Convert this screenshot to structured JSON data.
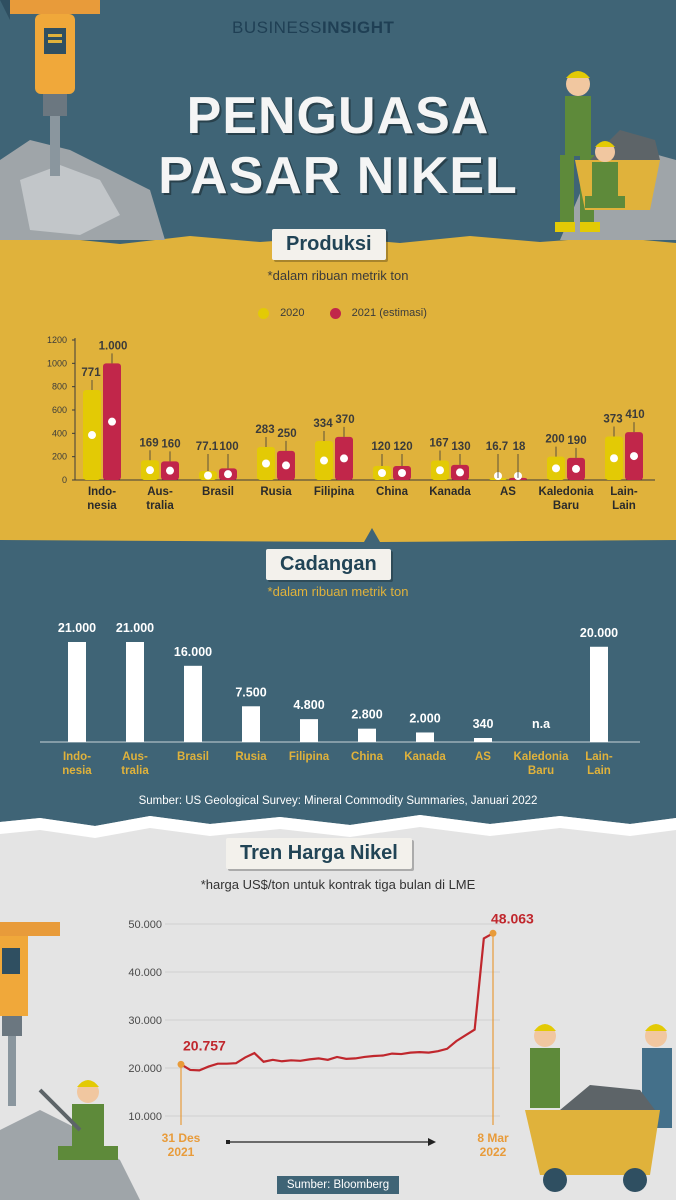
{
  "brand": {
    "part1": "BUSINESS",
    "part2": "INSIGHT"
  },
  "title": {
    "line1": "PENGUASA",
    "line2": "PASAR NIKEL"
  },
  "colors": {
    "bg_dark": "#3f6476",
    "gold": "#e0b23b",
    "yellow": "#e3ca05",
    "crimson": "#c1264a",
    "white": "#ffffff",
    "price_line": "#c0272d",
    "orange": "#e89b3a"
  },
  "produksi": {
    "heading": "Produksi",
    "note": "*dalam ribuan metrik ton",
    "legend": {
      "a": "2020",
      "b": "2021 (estimasi)"
    }
  },
  "cadangan": {
    "heading": "Cadangan",
    "note": "*dalam ribuan metrik ton",
    "source": "Sumber: US Geological Survey: Mineral Commodity Summaries, Januari 2022"
  },
  "harga": {
    "heading": "Tren Harga Nikel",
    "note": "*harga US$/ton untuk kontrak tiga bulan di LME",
    "source": "Sumber: Bloomberg"
  },
  "chart_data": [
    {
      "type": "bar",
      "title": "Produksi",
      "categories": [
        "Indo-\nnesia",
        "Aus-\ntralia",
        "Brasil",
        "Rusia",
        "Filipina",
        "China",
        "Kanada",
        "AS",
        "Kaledonia\nBaru",
        "Lain-\nLain"
      ],
      "series": [
        {
          "name": "2020",
          "values": [
            771,
            169,
            77.1,
            283,
            334,
            120,
            167,
            16.7,
            200,
            373
          ],
          "labels": [
            "771",
            "169",
            "77.1",
            "283",
            "334",
            "120",
            "167",
            "16.7",
            "200",
            "373"
          ]
        },
        {
          "name": "2021 (estimasi)",
          "values": [
            1000,
            160,
            100,
            250,
            370,
            120,
            130,
            18,
            190,
            410
          ],
          "labels": [
            "1.000",
            "160",
            "100",
            "250",
            "370",
            "120",
            "130",
            "18",
            "190",
            "410"
          ]
        }
      ],
      "yticks": [
        "0",
        "200",
        "400",
        "600",
        "800",
        "1000",
        "1200"
      ],
      "ylim": [
        0,
        1200
      ]
    },
    {
      "type": "bar",
      "title": "Cadangan",
      "categories": [
        "Indo-\nnesia",
        "Aus-\ntralia",
        "Brasil",
        "Rusia",
        "Filipina",
        "China",
        "Kanada",
        "AS",
        "Kaledonia\nBaru",
        "Lain-\nLain"
      ],
      "values": [
        21000,
        21000,
        16000,
        7500,
        4800,
        2800,
        2000,
        340,
        null,
        20000
      ],
      "labels": [
        "21.000",
        "21.000",
        "16.000",
        "7.500",
        "4.800",
        "2.800",
        "2.000",
        "340",
        "n.a",
        "20.000"
      ],
      "ylim": [
        0,
        21000
      ]
    },
    {
      "type": "line",
      "title": "Tren Harga Nikel",
      "ylim": [
        10000,
        50000
      ],
      "yticks": [
        "10.000",
        "20.000",
        "30.000",
        "40.000",
        "50.000"
      ],
      "start_label": "20.757",
      "end_label": "48.063",
      "x_start": "31 Des\n2021",
      "x_end": "8 Mar\n2022",
      "values": [
        20757,
        19600,
        19500,
        20300,
        20900,
        20900,
        21000,
        22200,
        23100,
        21300,
        21700,
        21400,
        21600,
        21500,
        21800,
        22000,
        21700,
        22300,
        21900,
        22000,
        22300,
        22500,
        22600,
        23000,
        22900,
        23200,
        23300,
        23200,
        23500,
        24000,
        25600,
        26800,
        28000,
        47000,
        48063
      ]
    }
  ]
}
